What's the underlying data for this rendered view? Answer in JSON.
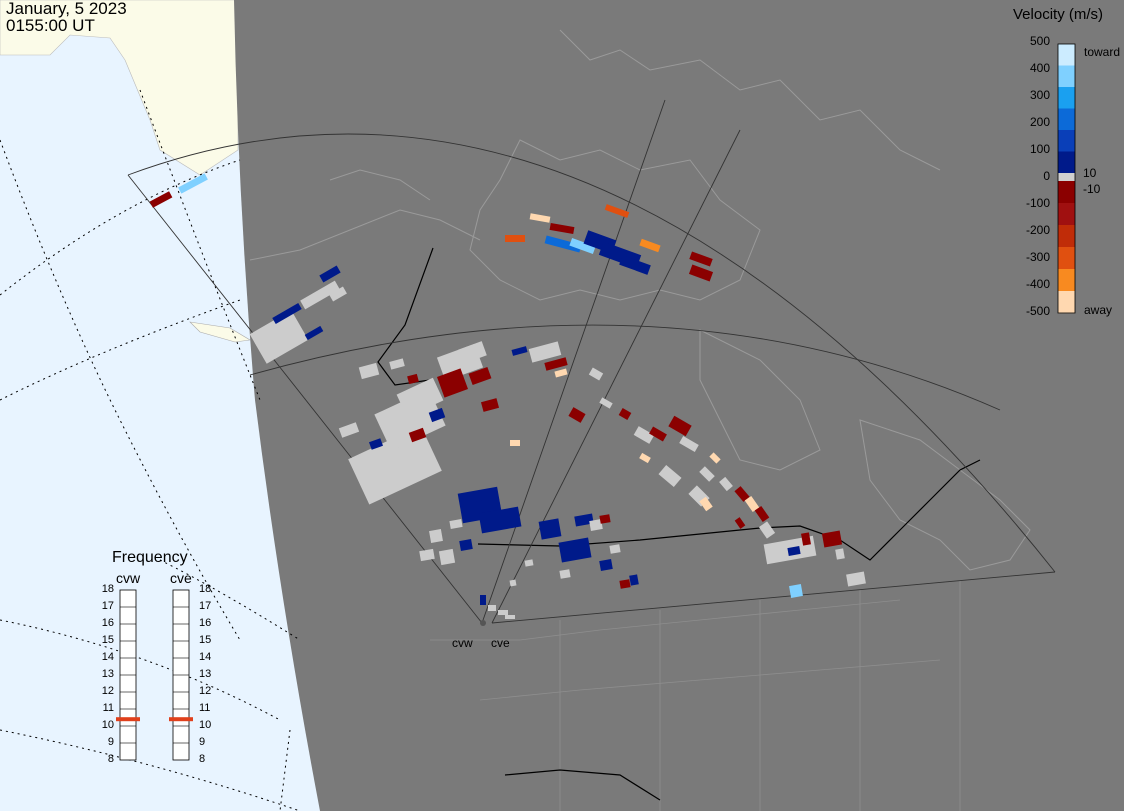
{
  "header": {
    "date": "January, 5 2023",
    "time": "0155:00 UT"
  },
  "velocity_scale": {
    "title": "Velocity (m/s)",
    "ticks": [
      "500",
      "400",
      "300",
      "200",
      "100",
      "10",
      "0",
      "-10",
      "-100",
      "-200",
      "-300",
      "-400",
      "-500"
    ],
    "toward_label": "toward",
    "away_label": "away",
    "colors": {
      "toward": [
        "#ccecff",
        "#7fd0ff",
        "#1aa0f0",
        "#0c6ad8",
        "#0a3fb8",
        "#001a8a"
      ],
      "zero": "#d0d0d0",
      "away": [
        "#8b0000",
        "#a01010",
        "#c02c08",
        "#e05010",
        "#f88a20",
        "#ffd8b0"
      ]
    }
  },
  "frequency_panel": {
    "title": "Frequency",
    "columns": [
      "cvw",
      "cve"
    ],
    "ticks": [
      "18",
      "17",
      "16",
      "15",
      "14",
      "13",
      "12",
      "11",
      "10",
      "9",
      "8"
    ],
    "current": {
      "cvw": 11,
      "cve": 11
    },
    "marker_color": "#e0401c"
  },
  "sites": [
    "cvw",
    "cve"
  ],
  "colors": {
    "background_light": "#e8f4ff",
    "land_light": "#fbfbe8",
    "night_shade": "#7a7a7a",
    "ground_scatter": "#cccccc",
    "coast": "#9a9a9a",
    "fov": "#3a3a3a"
  }
}
